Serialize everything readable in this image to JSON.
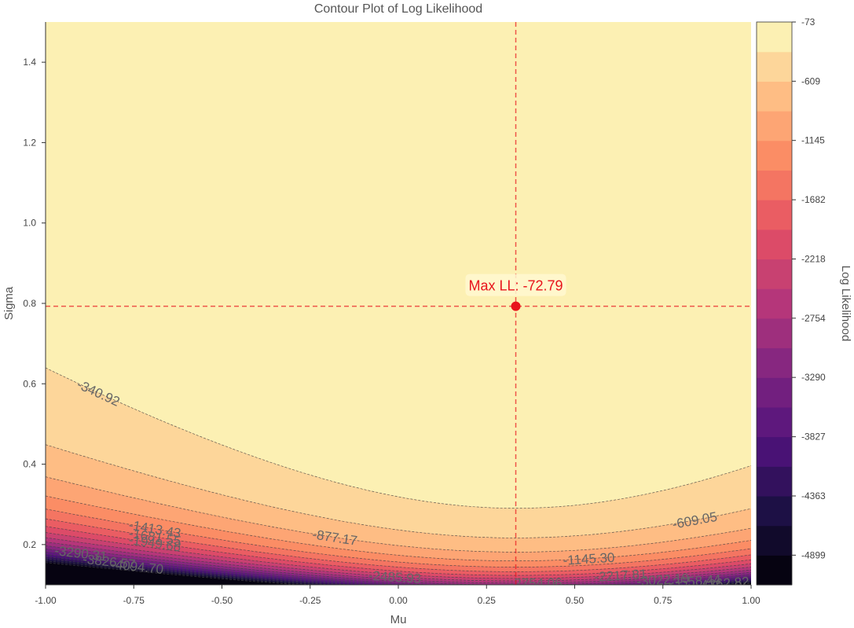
{
  "chart_data": {
    "type": "contour",
    "title": "Contour Plot of Log Likelihood",
    "xlabel": "Mu",
    "ylabel": "Sigma",
    "colorbar_label": "Log Likelihood",
    "xlim": [
      -1.0,
      1.0
    ],
    "ylim": [
      0.1,
      1.5
    ],
    "x_ticks": [
      "-1.00",
      "-0.75",
      "-0.50",
      "-0.25",
      "0.00",
      "0.25",
      "0.50",
      "0.75",
      "1.00"
    ],
    "y_ticks": [
      "0.2",
      "0.4",
      "0.6",
      "0.8",
      "1.0",
      "1.2",
      "1.4"
    ],
    "x_tick_values": [
      -1.0,
      -0.75,
      -0.5,
      -0.25,
      0.0,
      0.25,
      0.5,
      0.75,
      1.0
    ],
    "y_tick_values": [
      0.2,
      0.4,
      0.6,
      0.8,
      1.0,
      1.2,
      1.4
    ],
    "colorbar_ticks": [
      "-73",
      "-609",
      "-1145",
      "-1682",
      "-2218",
      "-2754",
      "-3290",
      "-3827",
      "-4363",
      "-4899"
    ],
    "colorbar_tick_values": [
      -73,
      -609,
      -1145,
      -1682,
      -2218,
      -2754,
      -3290,
      -3827,
      -4363,
      -4899
    ],
    "level_range": [
      -5167,
      -73
    ],
    "n_levels": 19,
    "colormap": "magma",
    "max_point": {
      "mu": 0.333,
      "sigma": 0.793,
      "label": "Max LL: -72.79",
      "color": "#e8141c"
    },
    "contour_labels": [
      {
        "text": "-340.92",
        "level": -340.92,
        "mu": -0.85
      },
      {
        "text": "-609.05",
        "level": -609.05,
        "mu": 0.84
      },
      {
        "text": "-877.17",
        "level": -877.17,
        "mu": -0.18
      },
      {
        "text": "-1145.30",
        "level": -1145.3,
        "mu": 0.54
      },
      {
        "text": "-1413.43",
        "level": -1413.43,
        "mu": -0.69
      },
      {
        "text": "-1681.55",
        "level": -1681.55,
        "mu": -0.69
      },
      {
        "text": "-1949.68",
        "level": -1949.68,
        "mu": -0.69
      },
      {
        "text": "-2217.81",
        "level": -2217.81,
        "mu": 0.63
      },
      {
        "text": "-2485.93",
        "level": -2485.93,
        "mu": -0.01
      },
      {
        "text": "-2754.06",
        "level": -2754.06,
        "mu": 0.39
      },
      {
        "text": "-3022.19",
        "level": -3022.19,
        "mu": 0.75
      },
      {
        "text": "-3290.31",
        "level": -3290.31,
        "mu": -0.9
      },
      {
        "text": "-3558.44",
        "level": -3558.44,
        "mu": 0.84
      },
      {
        "text": "-3826.57",
        "level": -3826.57,
        "mu": -0.82
      },
      {
        "text": "-4094.70",
        "level": -4094.7,
        "mu": -0.74
      },
      {
        "text": "-4362.82",
        "level": -4362.82,
        "mu": 0.92
      }
    ]
  }
}
